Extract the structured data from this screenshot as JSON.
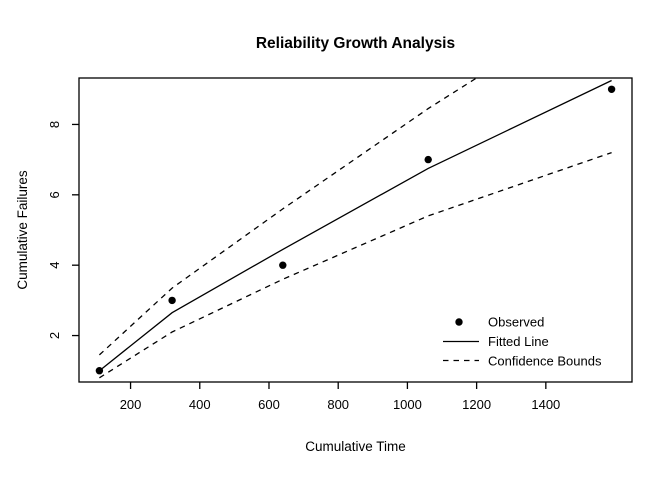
{
  "colors": {
    "foreground": "#000000",
    "background": "#ffffff"
  },
  "chart_data": {
    "type": "line",
    "title": "Reliability Growth Analysis",
    "xlabel": "Cumulative Time",
    "ylabel": "Cumulative Failures",
    "x_ticks": [
      200,
      400,
      600,
      800,
      1000,
      1200,
      1400
    ],
    "y_ticks": [
      2,
      4,
      6,
      8
    ],
    "xlim": [
      51,
      1649
    ],
    "ylim": [
      0.68,
      9.32
    ],
    "grid": false,
    "x": [
      110,
      320,
      640,
      1060,
      1590
    ],
    "series": [
      {
        "name": "Observed",
        "type": "scatter",
        "marker": "filled-circle",
        "values": [
          1,
          3,
          4,
          7,
          9
        ]
      },
      {
        "name": "Fitted Line",
        "type": "line",
        "style": "solid",
        "values": [
          1.0,
          2.65,
          4.45,
          6.75,
          9.25
        ]
      },
      {
        "name": "Upper Confidence Bound",
        "type": "line",
        "style": "dashed",
        "values": [
          1.45,
          3.35,
          5.6,
          8.45,
          11.75
        ]
      },
      {
        "name": "Lower Confidence Bound",
        "type": "line",
        "style": "dashed",
        "values": [
          0.8,
          2.1,
          3.6,
          5.4,
          7.2
        ]
      }
    ],
    "legend": {
      "position": "bottomright",
      "entries": [
        "Observed",
        "Fitted Line",
        "Confidence Bounds"
      ]
    }
  }
}
